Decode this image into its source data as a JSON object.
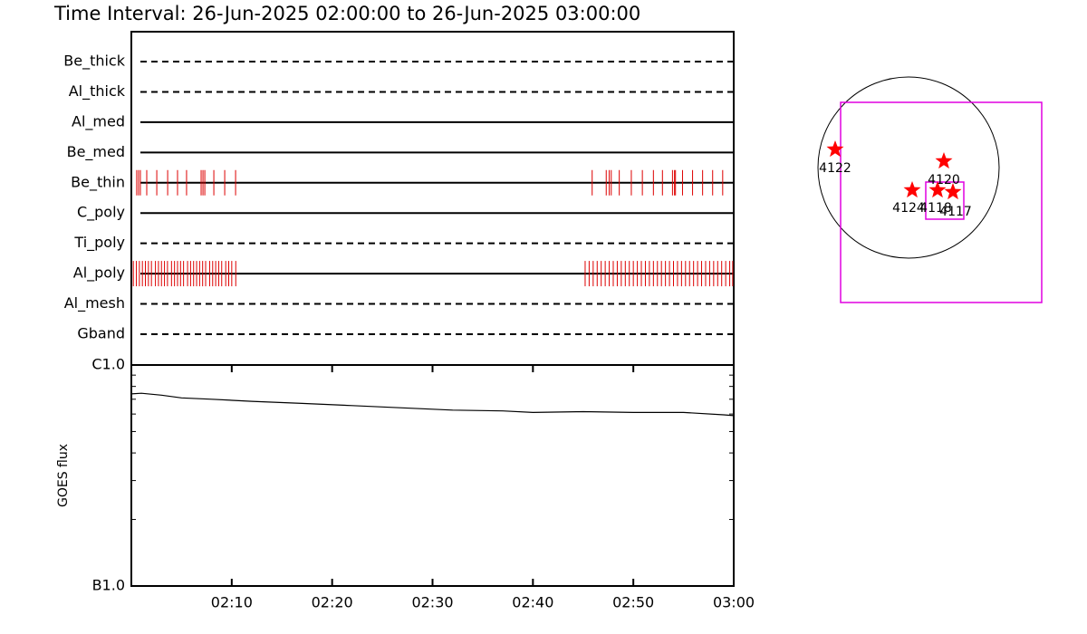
{
  "title": "Time Interval: 26-Jun-2025 02:00:00 to 26-Jun-2025 03:00:00",
  "time_axis": {
    "xlim": [
      "02:00",
      "03:00"
    ],
    "xticks": [
      "02:10",
      "02:20",
      "02:30",
      "02:40",
      "02:50",
      "03:00"
    ]
  },
  "filters": {
    "rows": [
      {
        "name": "Be_thick",
        "style": "dashed",
        "times": []
      },
      {
        "name": "Al_thick",
        "style": "dashed",
        "times": []
      },
      {
        "name": "Al_med",
        "style": "solid",
        "times": []
      },
      {
        "name": "Be_med",
        "style": "solid",
        "times": []
      },
      {
        "name": "Be_thin",
        "style": "solid",
        "times": [
          "02:00:32",
          "02:00:43",
          "02:00:54",
          "02:01:32",
          "02:02:32",
          "02:03:37",
          "02:04:36",
          "02:05:30",
          "02:06:57",
          "02:07:08",
          "02:07:19",
          "02:08:13",
          "02:09:18",
          "02:10:23",
          "02:45:54",
          "02:47:18",
          "02:47:36",
          "02:47:48",
          "02:48:36",
          "02:49:48",
          "02:50:54",
          "02:52:00",
          "02:52:54",
          "02:53:54",
          "02:54:06",
          "02:54:12",
          "02:54:54",
          "02:55:54",
          "02:56:54",
          "02:57:54",
          "02:58:54"
        ]
      },
      {
        "name": "C_poly",
        "style": "solid",
        "times": []
      },
      {
        "name": "Ti_poly",
        "style": "dashed",
        "times": []
      },
      {
        "name": "Al_poly",
        "style": "solid",
        "times": [
          "02:00:12",
          "02:00:30",
          "02:00:48",
          "02:01:06",
          "02:01:24",
          "02:01:42",
          "02:02:00",
          "02:02:24",
          "02:02:42",
          "02:03:00",
          "02:03:18",
          "02:03:36",
          "02:04:00",
          "02:04:18",
          "02:04:36",
          "02:04:54",
          "02:05:12",
          "02:05:36",
          "02:05:54",
          "02:06:12",
          "02:06:30",
          "02:06:48",
          "02:07:06",
          "02:07:24",
          "02:07:48",
          "02:08:06",
          "02:08:24",
          "02:08:42",
          "02:09:00",
          "02:09:24",
          "02:09:42",
          "02:10:00",
          "02:10:24",
          "02:45:12",
          "02:45:36",
          "02:46:00",
          "02:46:24",
          "02:46:48",
          "02:47:12",
          "02:47:36",
          "02:48:00",
          "02:48:24",
          "02:48:48",
          "02:49:12",
          "02:49:36",
          "02:50:00",
          "02:50:24",
          "02:50:48",
          "02:51:12",
          "02:51:36",
          "02:52:00",
          "02:52:24",
          "02:52:48",
          "02:53:12",
          "02:53:36",
          "02:54:00",
          "02:54:24",
          "02:54:48",
          "02:55:12",
          "02:55:36",
          "02:56:00",
          "02:56:24",
          "02:56:48",
          "02:57:12",
          "02:57:36",
          "02:58:00",
          "02:58:24",
          "02:58:48",
          "02:59:12",
          "02:59:36",
          "02:59:54"
        ]
      },
      {
        "name": "Al_mesh",
        "style": "dashed",
        "times": []
      },
      {
        "name": "Gband",
        "style": "dashed",
        "times": []
      }
    ],
    "tick_color": "#dd0000"
  },
  "goes": {
    "ylabel": "GOES flux",
    "log": true,
    "ylim": [
      1e-07,
      1e-06
    ],
    "yticks": [
      {
        "value": 1e-07,
        "label": "B1.0"
      },
      {
        "value": 1e-06,
        "label": "C1.0"
      }
    ],
    "yminor": [
      2e-07,
      3e-07,
      4e-07,
      5e-07,
      6e-07,
      7e-07,
      8e-07,
      9e-07
    ],
    "x": [
      "02:00",
      "02:01",
      "02:03",
      "02:05",
      "02:08",
      "02:12",
      "02:17",
      "02:22",
      "02:27",
      "02:32",
      "02:37",
      "02:40",
      "02:45",
      "02:50",
      "02:55",
      "02:59",
      "03:00"
    ],
    "values": [
      7.4e-07,
      7.45e-07,
      7.3e-07,
      7.1e-07,
      7e-07,
      6.85e-07,
      6.7e-07,
      6.55e-07,
      6.4e-07,
      6.25e-07,
      6.2e-07,
      6.1e-07,
      6.15e-07,
      6.1e-07,
      6.1e-07,
      5.95e-07,
      5.9e-07
    ]
  },
  "map": {
    "regions": [
      "4122",
      "4120",
      "4124",
      "4118",
      "4117"
    ]
  }
}
